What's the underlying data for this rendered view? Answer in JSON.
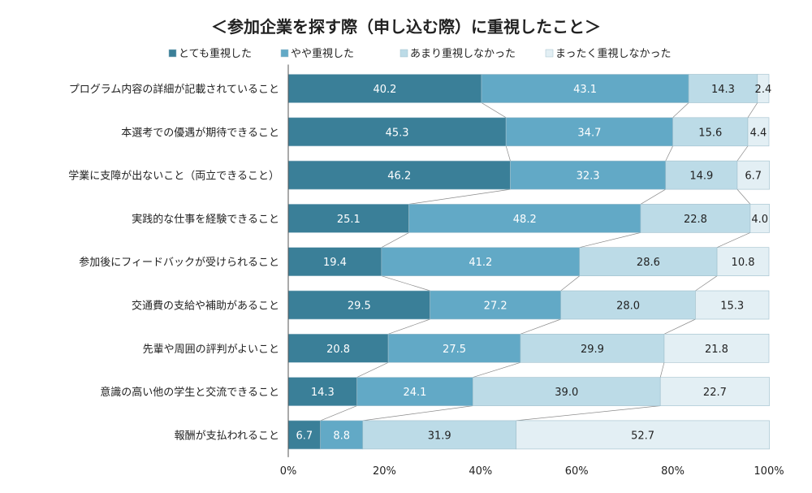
{
  "chart_data": {
    "type": "bar",
    "stacked": true,
    "orientation": "horizontal",
    "title": "＜参加企業を探す際（申し込む際）に重視したこと＞",
    "categories": [
      "プログラム内容の詳細が記載されていること",
      "本選考での優遇が期待できること",
      "学業に支障が出ないこと（両立できること）",
      "実践的な仕事を経験できること",
      "参加後にフィードバックが受けられること",
      "交通費の支給や補助があること",
      "先輩や周囲の評判がよいこと",
      "意識の高い他の学生と交流できること",
      "報酬が支払われること"
    ],
    "series": [
      {
        "name": "とても重視した",
        "color": "#3a7f98",
        "label_color": "#ffffff",
        "values": [
          40.2,
          45.3,
          46.2,
          25.1,
          19.4,
          29.5,
          20.8,
          14.3,
          6.7
        ]
      },
      {
        "name": "やや重視した",
        "color": "#62a9c6",
        "label_color": "#ffffff",
        "values": [
          43.1,
          34.7,
          32.3,
          48.2,
          41.2,
          27.2,
          27.5,
          24.1,
          8.8
        ]
      },
      {
        "name": "あまり重視しなかった",
        "color": "#bcdbe7",
        "label_color": "#222222",
        "values": [
          14.3,
          15.6,
          14.9,
          22.8,
          28.6,
          28.0,
          29.9,
          39.0,
          31.9
        ]
      },
      {
        "name": "まったく重視しなかった",
        "color": "#e3eff4",
        "label_color": "#222222",
        "values": [
          2.4,
          4.4,
          6.7,
          4.0,
          10.8,
          15.3,
          21.8,
          22.7,
          52.7
        ]
      }
    ],
    "x_ticks": [
      "0%",
      "20%",
      "40%",
      "60%",
      "80%",
      "100%"
    ],
    "xlim": [
      0,
      100
    ],
    "legend_position": "top",
    "grid": false,
    "connector_lines": true
  }
}
